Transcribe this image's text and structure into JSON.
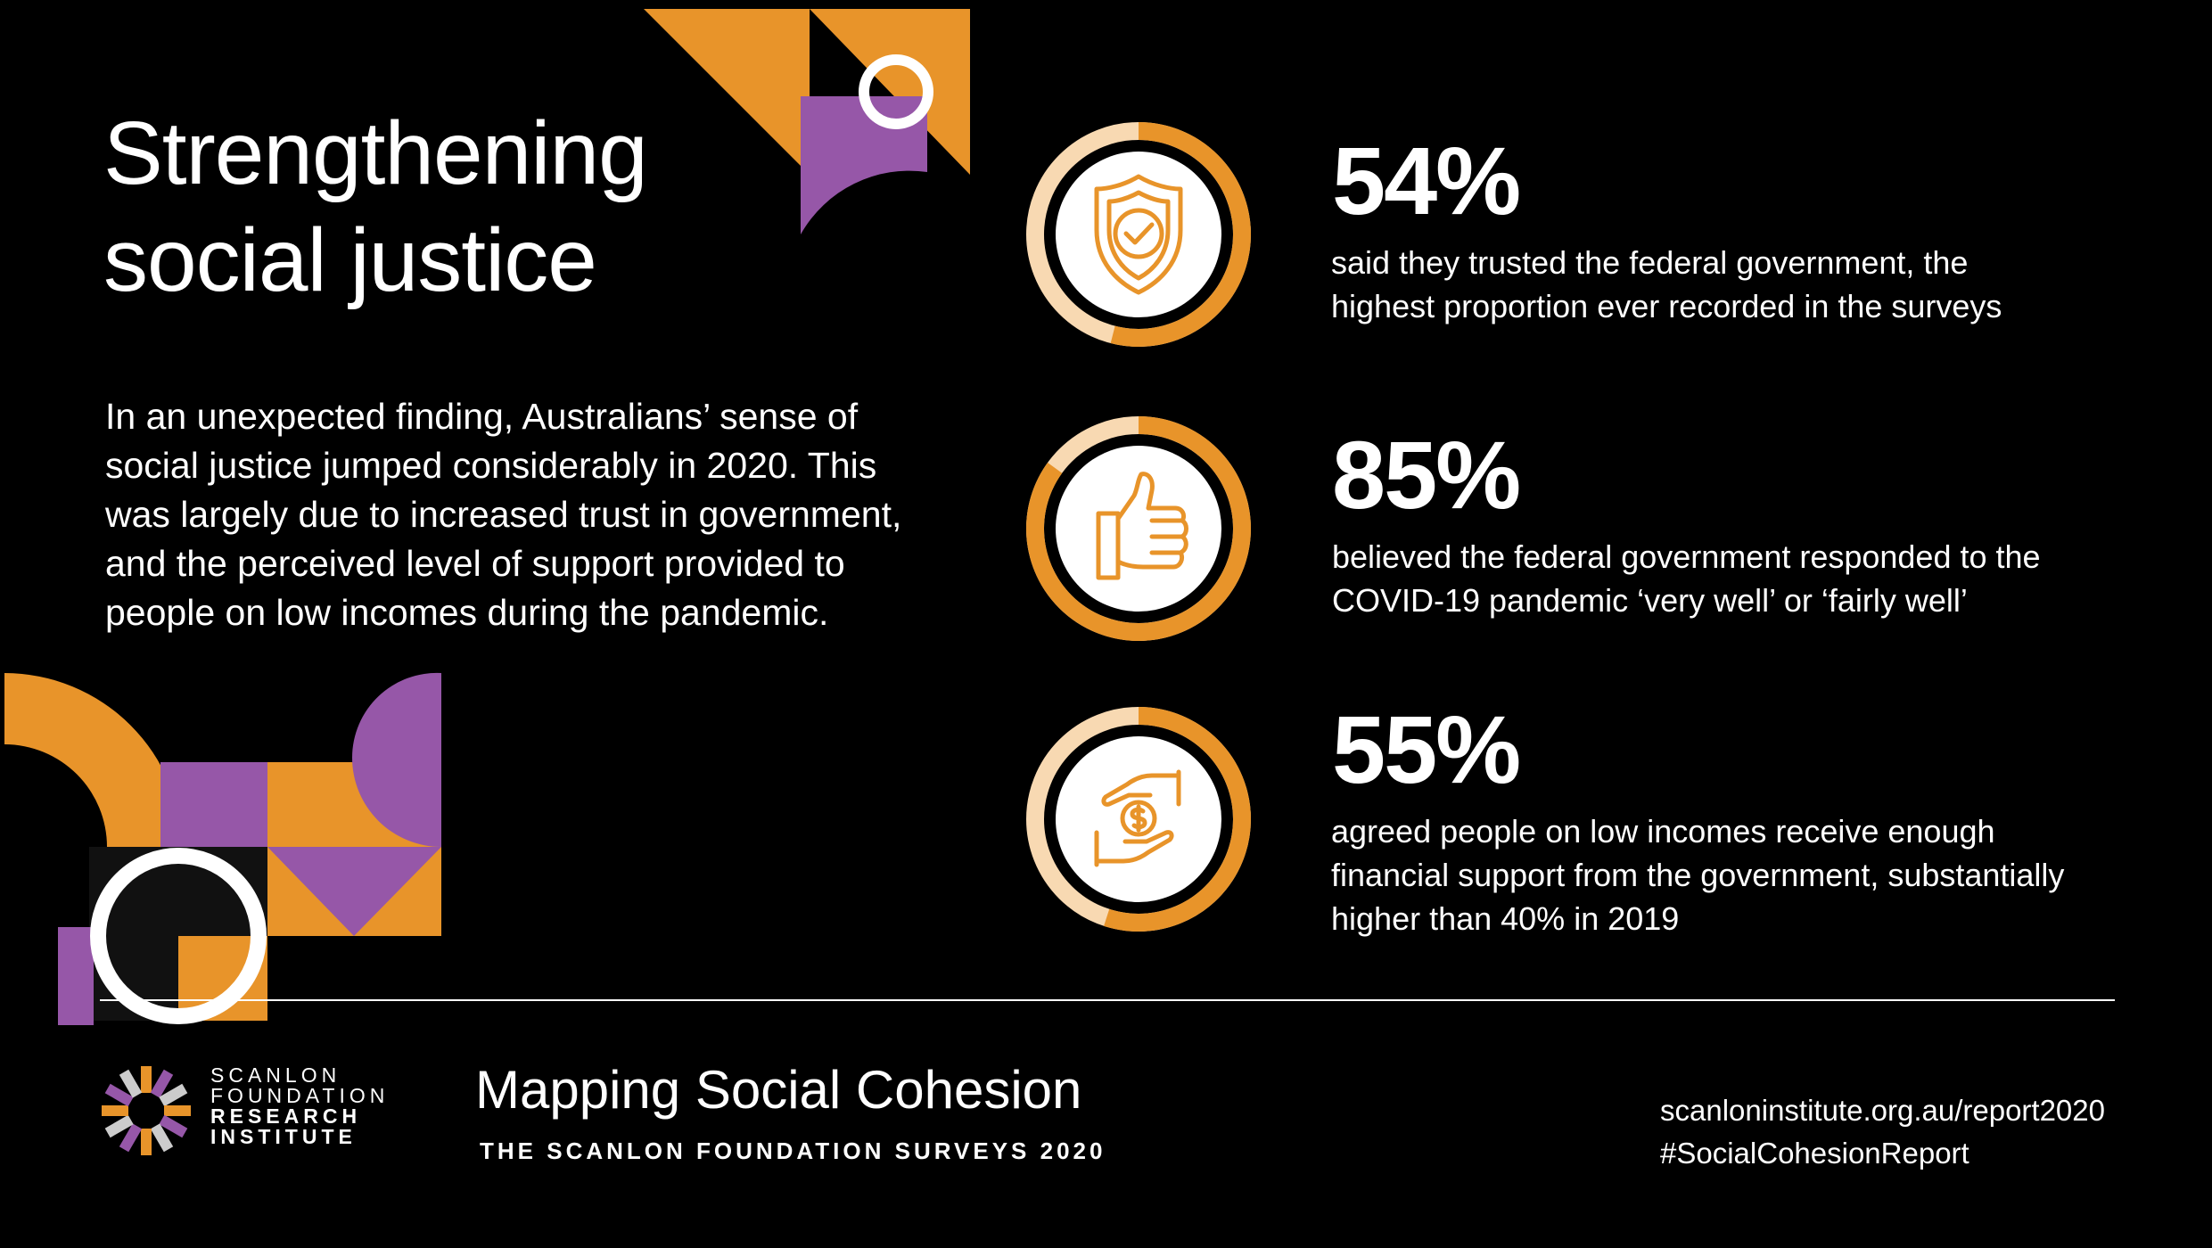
{
  "colors": {
    "background": "#000000",
    "orange": "#E8942A",
    "purple": "#9657A8",
    "peach": "#F8D9B2",
    "white": "#FFFFFF"
  },
  "header": {
    "title_line1": "Strengthening",
    "title_line2": "social justice"
  },
  "intro": {
    "line1": "In an unexpected finding, Australians’ sense of",
    "line2": "social justice jumped considerably in 2020. This",
    "line3": "was largely due to increased trust in government,",
    "line4": "and the perceived level of support provided to",
    "line5": "people on low incomes during the pandemic."
  },
  "stats": [
    {
      "icon": "shield-check-icon",
      "percent": 54,
      "value": "54%",
      "line1": "said they trusted the federal government, the",
      "line2": "highest proportion ever recorded in the surveys"
    },
    {
      "icon": "thumbs-up-icon",
      "percent": 85,
      "value": "85%",
      "line1": "believed the federal government responded to the",
      "line2": "COVID-19 pandemic ‘very well’ or ‘fairly well’"
    },
    {
      "icon": "hands-money-icon",
      "percent": 55,
      "value": "55%",
      "line1": "agreed people on low incomes receive enough",
      "line2": "financial support from the government, substantially",
      "line3": "higher than 40% in 2019"
    }
  ],
  "footer": {
    "logo_line1": "SCANLON",
    "logo_line2": "FOUNDATION",
    "logo_line3": "RESEARCH",
    "logo_line4": "INSTITUTE",
    "title": "Mapping Social Cohesion",
    "subtitle": "THE SCANLON FOUNDATION SURVEYS 2020",
    "url": "scanloninstitute.org.au/report2020",
    "hashtag": "#SocialCohesionReport"
  }
}
